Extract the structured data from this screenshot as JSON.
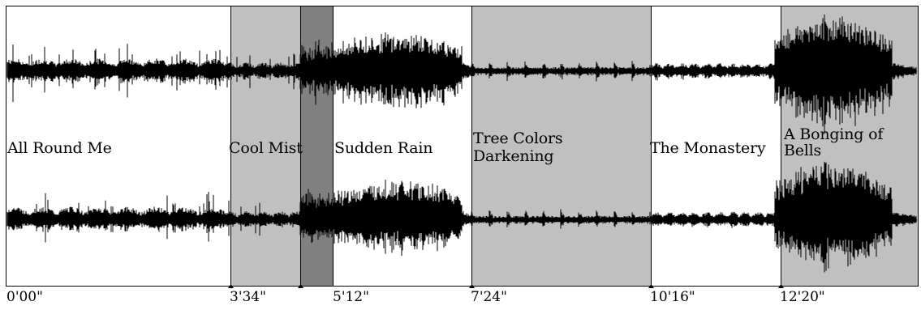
{
  "colors": {
    "section_light": "#c0c0c0",
    "section_dark": "#808080",
    "waveform": "#000000",
    "frame": "#000000",
    "background": "#ffffff"
  },
  "sections": [
    {
      "title_lines": [
        "All Round Me"
      ],
      "start": "0'00\"",
      "shade": "none"
    },
    {
      "title_lines": [
        "Cool Mist"
      ],
      "start": "3'34\"",
      "shade": "light"
    },
    {
      "title_lines": [],
      "start": "",
      "shade": "dark"
    },
    {
      "title_lines": [
        "Sudden Rain"
      ],
      "start": "5'12\"",
      "shade": "none"
    },
    {
      "title_lines": [
        "Tree Colors",
        "Darkening"
      ],
      "start": "7'24\"",
      "shade": "light"
    },
    {
      "title_lines": [
        "The Monastery"
      ],
      "start": "10'16\"",
      "shade": "none"
    },
    {
      "title_lines": [
        "A Bonging of",
        "Bells"
      ],
      "start": "12'20\"",
      "shade": "light"
    }
  ],
  "labels": {
    "s0": "All Round Me",
    "s1": "Cool Mist",
    "s3": "Sudden Rain",
    "s4_line1": "Tree Colors",
    "s4_line2": "Darkening",
    "s5": "The Monastery",
    "s6_line1": "A Bonging of",
    "s6_line2": "Bells"
  },
  "timeline": {
    "t0": "0'00\"",
    "t1": "3'34\"",
    "t3": "5'12\"",
    "t4": "7'24\"",
    "t5": "10'16\"",
    "t6": "12'20\""
  },
  "waveform_channels": [
    "top-channel",
    "bottom-channel"
  ]
}
